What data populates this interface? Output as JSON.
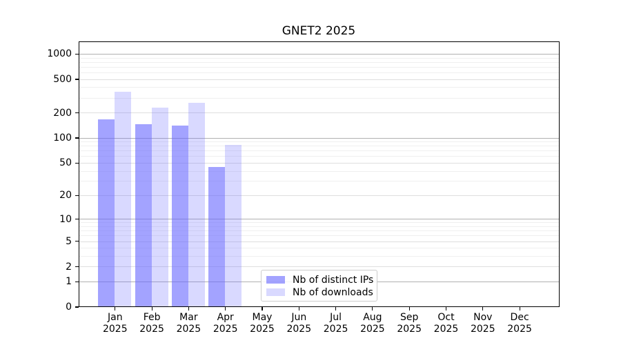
{
  "chart_data": {
    "type": "bar",
    "title": "GNET2 2025",
    "categories": [
      "Jan",
      "Feb",
      "Mar",
      "Apr",
      "May",
      "Jun",
      "Jul",
      "Aug",
      "Sep",
      "Oct",
      "Nov",
      "Dec"
    ],
    "x_sublabel": "2025",
    "yscale": "log1p",
    "yticks": [
      0,
      1,
      2,
      5,
      10,
      20,
      50,
      100,
      200,
      500,
      1000
    ],
    "ylim": [
      0,
      1400
    ],
    "grid": "horizontal",
    "legend_position": "inside-lower-center",
    "series": [
      {
        "key": "distinct-ips",
        "name": "Nb of distinct IPs",
        "color": "rgba(102,102,255,0.6)",
        "values": [
          165,
          144,
          139,
          44,
          null,
          null,
          null,
          null,
          null,
          null,
          null,
          null
        ]
      },
      {
        "key": "downloads",
        "name": "Nb of downloads",
        "color": "rgba(102,102,255,0.25)",
        "values": [
          350,
          228,
          258,
          82,
          null,
          null,
          null,
          null,
          null,
          null,
          null,
          null
        ]
      }
    ],
    "style": {
      "grid_major_color": "#b0b0b0",
      "grid_mid_color": "#dedede",
      "grid_minor_color": "#efefef",
      "spine_color": "#000000",
      "background": "#ffffff"
    }
  }
}
